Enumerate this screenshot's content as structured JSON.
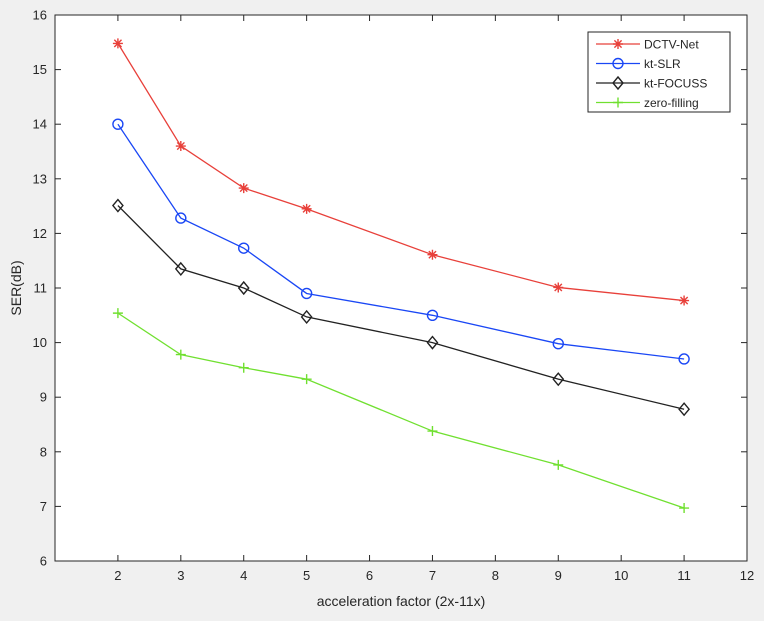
{
  "chart_data": {
    "type": "line",
    "title": "",
    "xlabel": "acceleration factor (2x-11x)",
    "ylabel": "SER(dB)",
    "xlim": [
      1,
      12
    ],
    "ylim": [
      6,
      16
    ],
    "xticks": [
      2,
      3,
      4,
      5,
      6,
      7,
      8,
      9,
      10,
      11,
      12
    ],
    "yticks": [
      6,
      7,
      8,
      9,
      10,
      11,
      12,
      13,
      14,
      15,
      16
    ],
    "grid": false,
    "legend_position": "top-right",
    "x": [
      2,
      3,
      4,
      5,
      7,
      9,
      11
    ],
    "series": [
      {
        "name": "DCTV-Net",
        "color": "#e8403a",
        "marker": "asterisk",
        "values": [
          15.48,
          13.6,
          12.83,
          12.45,
          11.61,
          11.01,
          10.77
        ]
      },
      {
        "name": "kt-SLR",
        "color": "#1a47f5",
        "marker": "circle",
        "values": [
          14.0,
          12.28,
          11.73,
          10.9,
          10.5,
          9.98,
          9.7
        ]
      },
      {
        "name": "kt-FOCUSS",
        "color": "#222222",
        "marker": "diamond",
        "values": [
          12.51,
          11.35,
          11.0,
          10.47,
          10.0,
          9.33,
          8.78
        ]
      },
      {
        "name": "zero-filling",
        "color": "#70e030",
        "marker": "plus",
        "values": [
          10.54,
          9.78,
          9.54,
          9.33,
          8.38,
          7.76,
          6.97
        ]
      }
    ]
  }
}
